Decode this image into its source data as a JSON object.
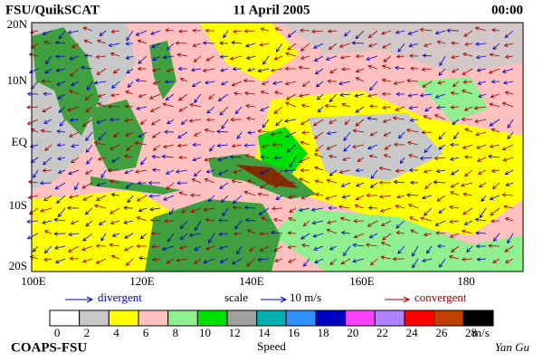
{
  "header": {
    "title": "FSU/QuikSCAT",
    "date": "11 April 2005",
    "time": "00:00"
  },
  "map": {
    "lat_labels": [
      "20N",
      "10N",
      "EQ",
      "10S",
      "20S"
    ],
    "lon_labels": [
      "100E",
      "120E",
      "140E",
      "160E",
      "180"
    ]
  },
  "legend": {
    "divergent": "divergent",
    "scale": "scale",
    "scale_value": "10 m/s",
    "convergent": "convergent"
  },
  "colorbar": {
    "labels": [
      "0",
      "2",
      "4",
      "6",
      "8",
      "10",
      "12",
      "14",
      "16",
      "18",
      "20",
      "22",
      "24",
      "26",
      "28"
    ],
    "unit": "m/s",
    "title": "Speed",
    "colors": [
      "#ffffff",
      "#c8c8c8",
      "#ffff00",
      "#ffc0c0",
      "#90f090",
      "#00e000",
      "#a0a0a0",
      "#00b0b0",
      "#3090ff",
      "#0000c0",
      "#ff40ff",
      "#b080ff",
      "#ff0000",
      "#c04000",
      "#000000"
    ]
  },
  "footer": {
    "credit": "COAPS-FSU",
    "author": "Yan Gu"
  }
}
